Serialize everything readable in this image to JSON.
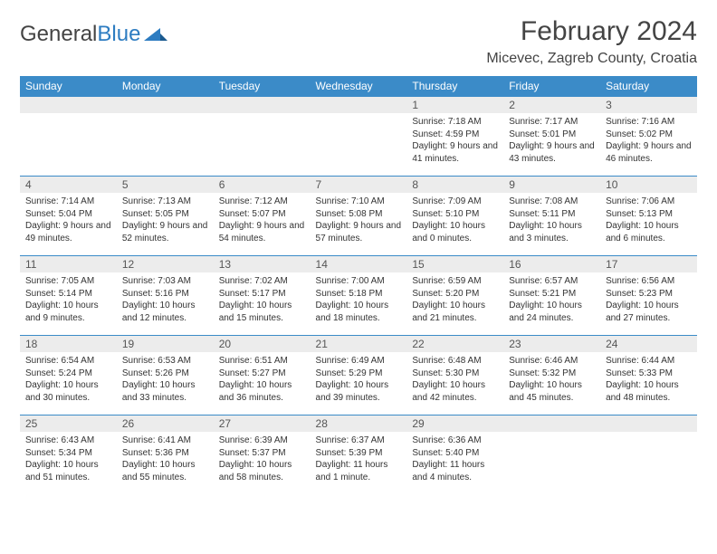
{
  "logo": {
    "text1": "General",
    "text2": "Blue"
  },
  "header": {
    "month_title": "February 2024",
    "location": "Micevec, Zagreb County, Croatia"
  },
  "colors": {
    "header_bg": "#3b8bc8",
    "header_text": "#ffffff",
    "daynum_bg": "#ececec",
    "border": "#3b8bc8",
    "logo_blue": "#2d7cc1"
  },
  "weekdays": [
    "Sunday",
    "Monday",
    "Tuesday",
    "Wednesday",
    "Thursday",
    "Friday",
    "Saturday"
  ],
  "weeks": [
    [
      null,
      null,
      null,
      null,
      {
        "n": "1",
        "sunrise": "7:18 AM",
        "sunset": "4:59 PM",
        "day": "9 hours and 41 minutes."
      },
      {
        "n": "2",
        "sunrise": "7:17 AM",
        "sunset": "5:01 PM",
        "day": "9 hours and 43 minutes."
      },
      {
        "n": "3",
        "sunrise": "7:16 AM",
        "sunset": "5:02 PM",
        "day": "9 hours and 46 minutes."
      }
    ],
    [
      {
        "n": "4",
        "sunrise": "7:14 AM",
        "sunset": "5:04 PM",
        "day": "9 hours and 49 minutes."
      },
      {
        "n": "5",
        "sunrise": "7:13 AM",
        "sunset": "5:05 PM",
        "day": "9 hours and 52 minutes."
      },
      {
        "n": "6",
        "sunrise": "7:12 AM",
        "sunset": "5:07 PM",
        "day": "9 hours and 54 minutes."
      },
      {
        "n": "7",
        "sunrise": "7:10 AM",
        "sunset": "5:08 PM",
        "day": "9 hours and 57 minutes."
      },
      {
        "n": "8",
        "sunrise": "7:09 AM",
        "sunset": "5:10 PM",
        "day": "10 hours and 0 minutes."
      },
      {
        "n": "9",
        "sunrise": "7:08 AM",
        "sunset": "5:11 PM",
        "day": "10 hours and 3 minutes."
      },
      {
        "n": "10",
        "sunrise": "7:06 AM",
        "sunset": "5:13 PM",
        "day": "10 hours and 6 minutes."
      }
    ],
    [
      {
        "n": "11",
        "sunrise": "7:05 AM",
        "sunset": "5:14 PM",
        "day": "10 hours and 9 minutes."
      },
      {
        "n": "12",
        "sunrise": "7:03 AM",
        "sunset": "5:16 PM",
        "day": "10 hours and 12 minutes."
      },
      {
        "n": "13",
        "sunrise": "7:02 AM",
        "sunset": "5:17 PM",
        "day": "10 hours and 15 minutes."
      },
      {
        "n": "14",
        "sunrise": "7:00 AM",
        "sunset": "5:18 PM",
        "day": "10 hours and 18 minutes."
      },
      {
        "n": "15",
        "sunrise": "6:59 AM",
        "sunset": "5:20 PM",
        "day": "10 hours and 21 minutes."
      },
      {
        "n": "16",
        "sunrise": "6:57 AM",
        "sunset": "5:21 PM",
        "day": "10 hours and 24 minutes."
      },
      {
        "n": "17",
        "sunrise": "6:56 AM",
        "sunset": "5:23 PM",
        "day": "10 hours and 27 minutes."
      }
    ],
    [
      {
        "n": "18",
        "sunrise": "6:54 AM",
        "sunset": "5:24 PM",
        "day": "10 hours and 30 minutes."
      },
      {
        "n": "19",
        "sunrise": "6:53 AM",
        "sunset": "5:26 PM",
        "day": "10 hours and 33 minutes."
      },
      {
        "n": "20",
        "sunrise": "6:51 AM",
        "sunset": "5:27 PM",
        "day": "10 hours and 36 minutes."
      },
      {
        "n": "21",
        "sunrise": "6:49 AM",
        "sunset": "5:29 PM",
        "day": "10 hours and 39 minutes."
      },
      {
        "n": "22",
        "sunrise": "6:48 AM",
        "sunset": "5:30 PM",
        "day": "10 hours and 42 minutes."
      },
      {
        "n": "23",
        "sunrise": "6:46 AM",
        "sunset": "5:32 PM",
        "day": "10 hours and 45 minutes."
      },
      {
        "n": "24",
        "sunrise": "6:44 AM",
        "sunset": "5:33 PM",
        "day": "10 hours and 48 minutes."
      }
    ],
    [
      {
        "n": "25",
        "sunrise": "6:43 AM",
        "sunset": "5:34 PM",
        "day": "10 hours and 51 minutes."
      },
      {
        "n": "26",
        "sunrise": "6:41 AM",
        "sunset": "5:36 PM",
        "day": "10 hours and 55 minutes."
      },
      {
        "n": "27",
        "sunrise": "6:39 AM",
        "sunset": "5:37 PM",
        "day": "10 hours and 58 minutes."
      },
      {
        "n": "28",
        "sunrise": "6:37 AM",
        "sunset": "5:39 PM",
        "day": "11 hours and 1 minute."
      },
      {
        "n": "29",
        "sunrise": "6:36 AM",
        "sunset": "5:40 PM",
        "day": "11 hours and 4 minutes."
      },
      null,
      null
    ]
  ],
  "labels": {
    "sunrise": "Sunrise:",
    "sunset": "Sunset:",
    "daylight": "Daylight:"
  }
}
